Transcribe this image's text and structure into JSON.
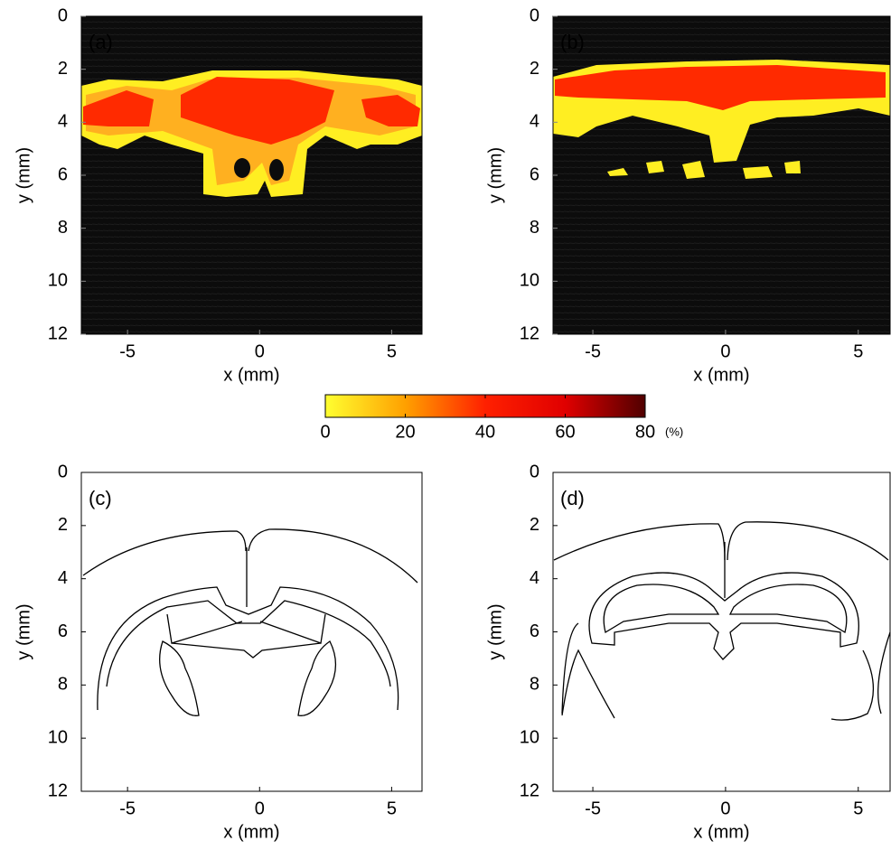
{
  "chart_data": [
    {
      "type": "heatmap",
      "label": "(a)",
      "xlabel": "x (mm)",
      "ylabel": "y (mm)",
      "xlim": [
        -6.75,
        6.15
      ],
      "xticks": [
        -5,
        0,
        5
      ],
      "ylim": [
        12,
        0
      ],
      "yticks": [
        0,
        2,
        4,
        6,
        8,
        10,
        12
      ]
    },
    {
      "type": "heatmap",
      "label": "(b)",
      "xlabel": "x (mm)",
      "ylabel": "y (mm)",
      "xlim": [
        -6.5,
        6.2
      ],
      "xticks": [
        -5,
        0,
        5
      ],
      "ylim": [
        12,
        0
      ],
      "yticks": [
        0,
        2,
        4,
        6,
        8,
        10,
        12
      ]
    },
    {
      "type": "outline",
      "label": "(c)",
      "xlabel": "x (mm)",
      "ylabel": "y (mm)",
      "xlim": [
        -6.75,
        6.15
      ],
      "xticks": [
        -5,
        0,
        5
      ],
      "ylim": [
        12,
        0
      ],
      "yticks": [
        0,
        2,
        4,
        6,
        8,
        10,
        12
      ]
    },
    {
      "type": "outline",
      "label": "(d)",
      "xlabel": "x (mm)",
      "ylabel": "y (mm)",
      "xlim": [
        -6.5,
        6.2
      ],
      "xticks": [
        -5,
        0,
        5
      ],
      "ylim": [
        12,
        0
      ],
      "yticks": [
        0,
        2,
        4,
        6,
        8,
        10,
        12
      ]
    },
    {
      "type": "colorbar",
      "unit_label": "(%)",
      "xlim": [
        0,
        80
      ],
      "xticks": [
        0,
        20,
        40,
        60,
        80
      ],
      "colors": [
        "#ffff30",
        "#ffa000",
        "#ff2000",
        "#e00000",
        "#500000"
      ]
    }
  ]
}
